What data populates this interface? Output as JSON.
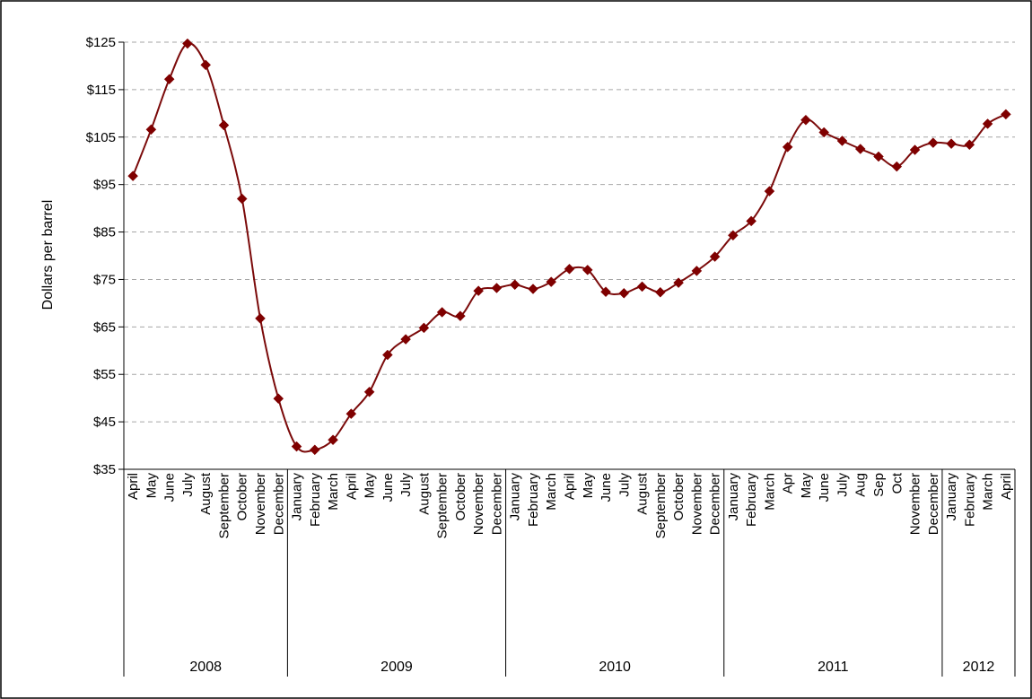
{
  "chart_data": {
    "type": "line",
    "title": "",
    "xlabel": "",
    "ylabel": "Dollars per barrel",
    "ylim": [
      35,
      125
    ],
    "yticks": [
      "$35",
      "$45",
      "$55",
      "$65",
      "$75",
      "$85",
      "$95",
      "$105",
      "$115",
      "$125"
    ],
    "ytick_values": [
      35,
      45,
      55,
      65,
      75,
      85,
      95,
      105,
      115,
      125
    ],
    "grid": "horizontal-dashed",
    "legend": "none",
    "colors": {
      "line": "#7b0a0a",
      "marker": "#7f0000",
      "grid": "#a6a6a6",
      "axis": "#000000"
    },
    "x": [
      "April",
      "May",
      "June",
      "July",
      "August",
      "September",
      "October",
      "November",
      "December",
      "January",
      "February",
      "March",
      "April",
      "May",
      "June",
      "July",
      "August",
      "September",
      "October",
      "November",
      "December",
      "January",
      "February",
      "March",
      "April",
      "May",
      "June",
      "July",
      "August",
      "September",
      "October",
      "November",
      "December",
      "January",
      "February",
      "March",
      "Apr",
      "May",
      "June",
      "July",
      "Aug",
      "Sep",
      "Oct",
      "November",
      "December",
      "January",
      "February",
      "March",
      "April"
    ],
    "years": [
      {
        "label": "2008",
        "count": 9
      },
      {
        "label": "2009",
        "count": 12
      },
      {
        "label": "2010",
        "count": 12
      },
      {
        "label": "2011",
        "count": 12
      },
      {
        "label": "2012",
        "count": 4
      }
    ],
    "series": [
      {
        "values": [
          96.8,
          106.6,
          117.2,
          124.7,
          120.2,
          107.5,
          92.0,
          66.8,
          49.9,
          39.8,
          39.1,
          41.2,
          46.7,
          51.3,
          59.1,
          62.4,
          64.8,
          68.1,
          67.3,
          72.6,
          73.2,
          73.9,
          73.0,
          74.5,
          77.2,
          77.0,
          72.4,
          72.1,
          73.5,
          72.3,
          74.3,
          76.8,
          79.8,
          84.3,
          87.3,
          93.6,
          102.9,
          108.6,
          106.0,
          104.2,
          102.5,
          100.9,
          98.8,
          102.3,
          103.8,
          103.6,
          103.4,
          107.8,
          109.8
        ]
      }
    ]
  }
}
